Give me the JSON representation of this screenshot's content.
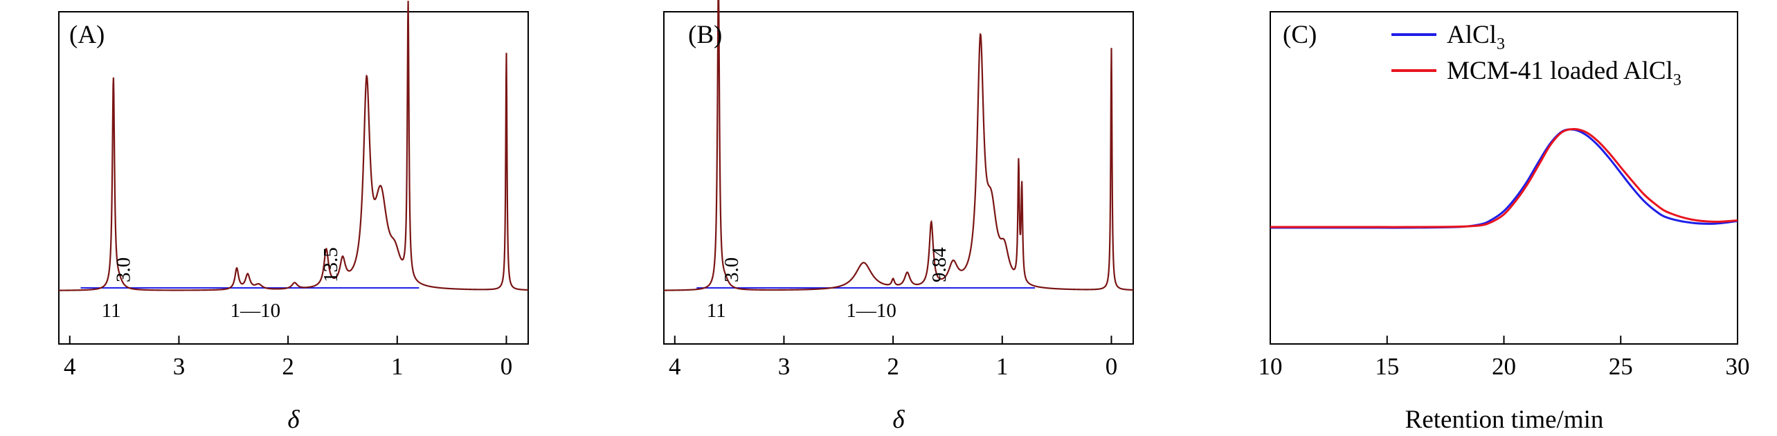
{
  "colors": {
    "blue": "#1f1fe8",
    "red": "#e8141e",
    "overlay_red": "#7a1414",
    "axis": "#000000"
  },
  "chart_data": [
    {
      "id": "A",
      "type": "line",
      "panel_label": "(A)",
      "title": "",
      "xlabel": "δ",
      "ylabel": "",
      "xlim": [
        4.1,
        -0.2
      ],
      "xticks": [
        4,
        3,
        2,
        1,
        0
      ],
      "xtick_labels": [
        "4",
        "3",
        "2",
        "1",
        "0"
      ],
      "y_relative": [
        -0.3,
        1.2
      ],
      "series": [
        {
          "color": "red",
          "baseline": 0.0,
          "peaks": [
            {
              "center": 3.6,
              "height": 0.85,
              "width": 0.012
            },
            {
              "center": 3.55,
              "height": 0.03,
              "width": 0.04
            },
            {
              "center": 2.47,
              "height": 0.085,
              "width": 0.02
            },
            {
              "center": 2.37,
              "height": 0.06,
              "width": 0.025
            },
            {
              "center": 2.27,
              "height": 0.02,
              "width": 0.04
            },
            {
              "center": 1.94,
              "height": 0.025,
              "width": 0.03
            },
            {
              "center": 1.65,
              "height": 0.15,
              "width": 0.025
            },
            {
              "center": 1.5,
              "height": 0.1,
              "width": 0.03
            },
            {
              "center": 1.28,
              "height": 0.78,
              "width": 0.035
            },
            {
              "center": 1.15,
              "height": 0.35,
              "width": 0.07
            },
            {
              "center": 1.02,
              "height": 0.1,
              "width": 0.06
            },
            {
              "center": 0.9,
              "height": 1.12,
              "width": 0.009
            },
            {
              "center": 0.0,
              "height": 0.96,
              "width": 0.007
            }
          ]
        }
      ],
      "integration_line": {
        "color": "blue",
        "from": 3.9,
        "to": 0.8
      },
      "annotations": [
        {
          "text": "3.0",
          "x": 3.45,
          "rotate": true
        },
        {
          "text": "11",
          "x": 3.62,
          "rotate": false
        },
        {
          "text": "1—10",
          "x": 2.3,
          "rotate": false
        },
        {
          "text": "13.5",
          "x": 1.55,
          "rotate": true
        }
      ]
    },
    {
      "id": "B",
      "type": "line",
      "panel_label": "(B)",
      "title": "",
      "xlabel": "δ",
      "ylabel": "",
      "xlim": [
        4.1,
        -0.2
      ],
      "xticks": [
        4,
        3,
        2,
        1,
        0
      ],
      "xtick_labels": [
        "4",
        "3",
        "2",
        "1",
        "0"
      ],
      "y_relative": [
        -0.3,
        1.2
      ],
      "series": [
        {
          "color": "red",
          "baseline": 0.0,
          "peaks": [
            {
              "center": 3.6,
              "height": 1.23,
              "width": 0.011
            },
            {
              "center": 3.54,
              "height": 0.03,
              "width": 0.04
            },
            {
              "center": 2.27,
              "height": 0.11,
              "width": 0.09
            },
            {
              "center": 2.0,
              "height": 0.03,
              "width": 0.015
            },
            {
              "center": 1.87,
              "height": 0.06,
              "width": 0.03
            },
            {
              "center": 1.65,
              "height": 0.26,
              "width": 0.022
            },
            {
              "center": 1.45,
              "height": 0.09,
              "width": 0.05
            },
            {
              "center": 1.2,
              "height": 0.95,
              "width": 0.035
            },
            {
              "center": 1.1,
              "height": 0.28,
              "width": 0.06
            },
            {
              "center": 0.98,
              "height": 0.12,
              "width": 0.05
            },
            {
              "center": 0.85,
              "height": 0.47,
              "width": 0.008
            },
            {
              "center": 0.82,
              "height": 0.38,
              "width": 0.008
            },
            {
              "center": 0.0,
              "height": 0.98,
              "width": 0.007
            }
          ]
        }
      ],
      "integration_line": {
        "color": "blue",
        "from": 3.8,
        "to": 0.7
      },
      "annotations": [
        {
          "text": "3.0",
          "x": 3.42,
          "rotate": true
        },
        {
          "text": "11",
          "x": 3.62,
          "rotate": false
        },
        {
          "text": "1—10",
          "x": 2.2,
          "rotate": false
        },
        {
          "text": "9.84",
          "x": 1.52,
          "rotate": true
        }
      ]
    },
    {
      "id": "C",
      "type": "line",
      "panel_label": "(C)",
      "title": "",
      "xlabel": "Retention time/min",
      "ylabel": "",
      "xlim": [
        10,
        30
      ],
      "xticks": [
        10,
        15,
        20,
        25,
        30
      ],
      "xtick_labels": [
        "10",
        "15",
        "20",
        "25",
        "30"
      ],
      "y_relative": [
        0,
        1
      ],
      "legend": {
        "position": "top-right"
      },
      "series": [
        {
          "name_parts": [
            "AlCl",
            "3"
          ],
          "color": "blue",
          "x": [
            10,
            12,
            14,
            16,
            18,
            19,
            19.5,
            20,
            20.5,
            21,
            21.5,
            22,
            22.5,
            23,
            23.5,
            24,
            24.5,
            25,
            25.5,
            26,
            26.5,
            27,
            28,
            29,
            30
          ],
          "y": [
            0.35,
            0.35,
            0.35,
            0.35,
            0.352,
            0.36,
            0.375,
            0.4,
            0.44,
            0.49,
            0.55,
            0.605,
            0.64,
            0.645,
            0.63,
            0.6,
            0.56,
            0.515,
            0.47,
            0.43,
            0.4,
            0.38,
            0.365,
            0.362,
            0.37
          ]
        },
        {
          "name_parts": [
            "MCM-41 loaded AlCl",
            "3"
          ],
          "color": "red",
          "x": [
            10,
            12,
            14,
            16,
            18,
            19,
            19.5,
            20,
            20.5,
            21,
            21.5,
            22,
            22.5,
            23,
            23.5,
            24,
            24.5,
            25,
            25.5,
            26,
            26.5,
            27,
            28,
            29,
            30
          ],
          "y": [
            0.352,
            0.352,
            0.352,
            0.352,
            0.353,
            0.357,
            0.368,
            0.39,
            0.43,
            0.48,
            0.54,
            0.6,
            0.638,
            0.647,
            0.638,
            0.612,
            0.575,
            0.532,
            0.49,
            0.45,
            0.42,
            0.397,
            0.375,
            0.368,
            0.372
          ]
        }
      ]
    }
  ]
}
